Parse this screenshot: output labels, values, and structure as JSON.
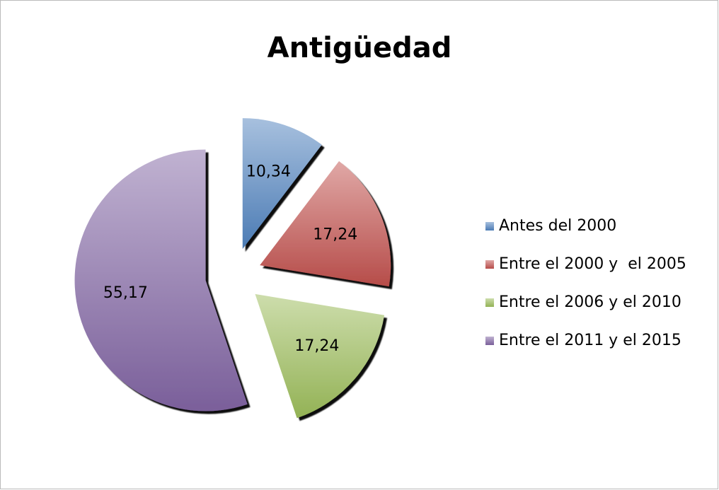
{
  "chart_data": {
    "type": "pie",
    "title": "Antigüedad",
    "categories": [
      "Antes del 2000",
      "Entre el 2000 y  el 2005",
      "Entre el 2006 y el 2010",
      "Entre el 2011 y el 2015"
    ],
    "values": [
      10.34,
      17.24,
      17.24,
      55.17
    ],
    "value_labels": [
      "10,34",
      "17,24",
      "17,24",
      "55,17"
    ],
    "colors": [
      "#4f81bd",
      "#c0504d",
      "#9bbb59",
      "#8064a2"
    ],
    "legend": "right",
    "exploded": true
  }
}
